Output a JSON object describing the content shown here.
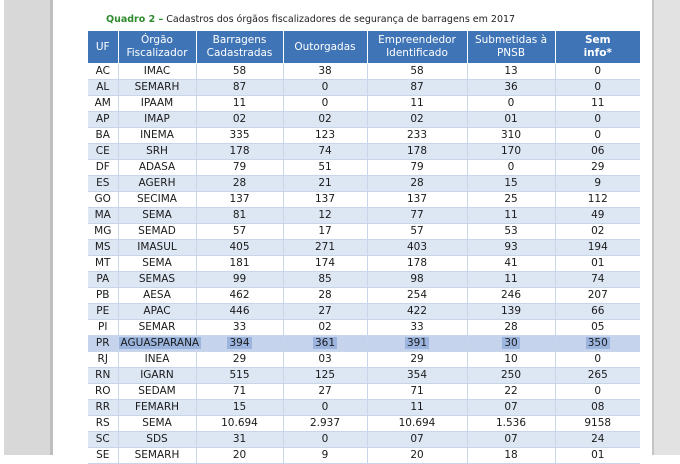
{
  "caption": {
    "label": "Quadro 2 –",
    "text": "Cadastros dos órgãos fiscalizadores de segurança de barragens em 2017"
  },
  "table": {
    "headers": [
      "UF",
      "Órgão Fiscalizador",
      "Barragens Cadastradas",
      "Outorgadas",
      "Empreendedor Identificado",
      "Submetidas à PNSB",
      "Sem info*"
    ],
    "rows": [
      [
        "AC",
        "IMAC",
        "58",
        "38",
        "58",
        "13",
        "0"
      ],
      [
        "AL",
        "SEMARH",
        "87",
        "0",
        "87",
        "36",
        "0"
      ],
      [
        "AM",
        "IPAAM",
        "11",
        "0",
        "11",
        "0",
        "11"
      ],
      [
        "AP",
        "IMAP",
        "02",
        "02",
        "02",
        "01",
        "0"
      ],
      [
        "BA",
        "INEMA",
        "335",
        "123",
        "233",
        "310",
        "0"
      ],
      [
        "CE",
        "SRH",
        "178",
        "74",
        "178",
        "170",
        "06"
      ],
      [
        "DF",
        "ADASA",
        "79",
        "51",
        "79",
        "0",
        "29"
      ],
      [
        "ES",
        "AGERH",
        "28",
        "21",
        "28",
        "15",
        "9"
      ],
      [
        "GO",
        "SECIMA",
        "137",
        "137",
        "137",
        "25",
        "112"
      ],
      [
        "MA",
        "SEMA",
        "81",
        "12",
        "77",
        "11",
        "49"
      ],
      [
        "MG",
        "SEMAD",
        "57",
        "17",
        "57",
        "53",
        "02"
      ],
      [
        "MS",
        "IMASUL",
        "405",
        "271",
        "403",
        "93",
        "194"
      ],
      [
        "MT",
        "SEMA",
        "181",
        "174",
        "178",
        "41",
        "01"
      ],
      [
        "PA",
        "SEMAS",
        "99",
        "85",
        "98",
        "11",
        "74"
      ],
      [
        "PB",
        "AESA",
        "462",
        "28",
        "254",
        "246",
        "207"
      ],
      [
        "PE",
        "APAC",
        "446",
        "27",
        "422",
        "139",
        "66"
      ],
      [
        "PI",
        "SEMAR",
        "33",
        "02",
        "33",
        "28",
        "05"
      ],
      [
        "PR",
        "AGUASPARANA",
        "394",
        "361",
        "391",
        "30",
        "350"
      ],
      [
        "RJ",
        "INEA",
        "29",
        "03",
        "29",
        "10",
        "0"
      ],
      [
        "RN",
        "IGARN",
        "515",
        "125",
        "354",
        "250",
        "265"
      ],
      [
        "RO",
        "SEDAM",
        "71",
        "27",
        "71",
        "22",
        "0"
      ],
      [
        "RR",
        "FEMARH",
        "15",
        "0",
        "11",
        "07",
        "08"
      ],
      [
        "RS",
        "SEMA",
        "10.694",
        "2.937",
        "10.694",
        "1.536",
        "9158"
      ],
      [
        "SC",
        "SDS",
        "31",
        "0",
        "07",
        "07",
        "24"
      ],
      [
        "SE",
        "SEMARH",
        "20",
        "9",
        "20",
        "18",
        "01"
      ]
    ]
  }
}
